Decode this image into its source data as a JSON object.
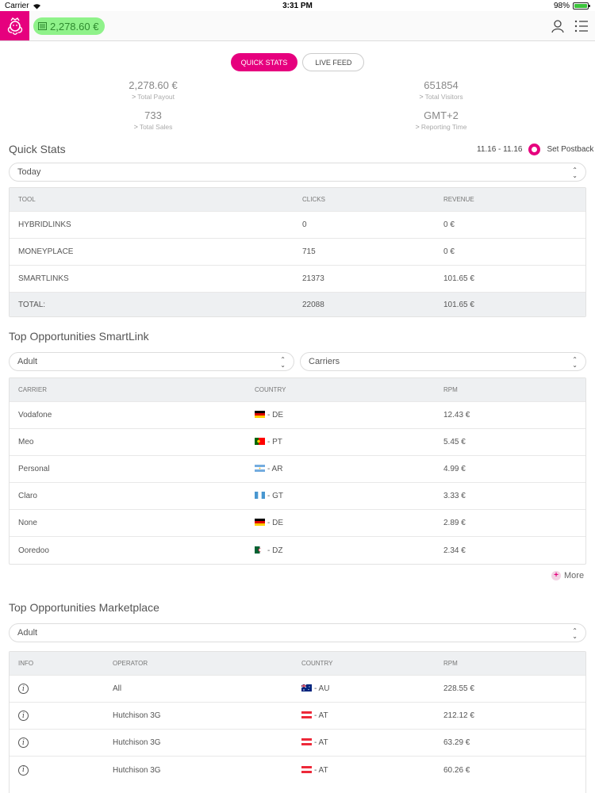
{
  "status_bar": {
    "carrier": "Carrier",
    "time": "3:31 PM",
    "battery": "98%",
    "battery_level": 0.98
  },
  "header": {
    "balance": "2,278.60 €"
  },
  "tabs": [
    {
      "label": "QUICK STATS",
      "active": true
    },
    {
      "label": "LIVE FEED",
      "active": false
    }
  ],
  "summary": {
    "total_payout": {
      "value": "2,278.60 €",
      "label": "Total Payout"
    },
    "total_visitors": {
      "value": "651854",
      "label": "Total Visitors"
    },
    "total_sales": {
      "value": "733",
      "label": "Total Sales"
    },
    "reporting_time": {
      "value": "GMT+2",
      "label": "Reporting Time"
    }
  },
  "quick_stats": {
    "title": "Quick Stats",
    "date_range": "11.16 - 11.16",
    "postback_label": "Set Postback",
    "period_select": "Today",
    "columns": [
      "TOOL",
      "CLICKS",
      "REVENUE"
    ],
    "rows": [
      {
        "tool": "HYBRIDLINKS",
        "clicks": "0",
        "revenue": "0 €"
      },
      {
        "tool": "MONEYPLACE",
        "clicks": "715",
        "revenue": "0 €"
      },
      {
        "tool": "SMARTLINKS",
        "clicks": "21373",
        "revenue": "101.65 €"
      }
    ],
    "total": {
      "label": "TOTAL:",
      "clicks": "22088",
      "revenue": "101.65 €"
    }
  },
  "smartlink": {
    "title": "Top Opportunities SmartLink",
    "category_select": "Adult",
    "carrier_select": "Carriers",
    "columns": [
      "CARRIER",
      "COUNTRY",
      "RPM"
    ],
    "rows": [
      {
        "carrier": "Vodafone",
        "flag": "de",
        "country": "- DE",
        "rpm": "12.43 €"
      },
      {
        "carrier": "Meo",
        "flag": "pt",
        "country": "- PT",
        "rpm": "5.45 €"
      },
      {
        "carrier": "Personal",
        "flag": "ar",
        "country": "- AR",
        "rpm": "4.99 €"
      },
      {
        "carrier": "Claro",
        "flag": "gt",
        "country": "- GT",
        "rpm": "3.33 €"
      },
      {
        "carrier": "None",
        "flag": "de",
        "country": "- DE",
        "rpm": "2.89 €"
      },
      {
        "carrier": "Ooredoo",
        "flag": "dz",
        "country": "- DZ",
        "rpm": "2.34 €"
      }
    ],
    "more_label": "More"
  },
  "marketplace": {
    "title": "Top Opportunities Marketplace",
    "category_select": "Adult",
    "columns": [
      "INFO",
      "OPERATOR",
      "COUNTRY",
      "RPM"
    ],
    "rows": [
      {
        "operator": "All",
        "flag": "au",
        "country": "- AU",
        "rpm": "228.55 €"
      },
      {
        "operator": "Hutchison 3G",
        "flag": "at",
        "country": "- AT",
        "rpm": "212.12 €"
      },
      {
        "operator": "Hutchison 3G",
        "flag": "at",
        "country": "- AT",
        "rpm": "63.29 €"
      },
      {
        "operator": "Hutchison 3G",
        "flag": "at",
        "country": "- AT",
        "rpm": "60.26 €"
      }
    ]
  },
  "colors": {
    "brand": "#e6007e",
    "balance_bg": "#8ff28a",
    "table_header_bg": "#eef0f2"
  }
}
